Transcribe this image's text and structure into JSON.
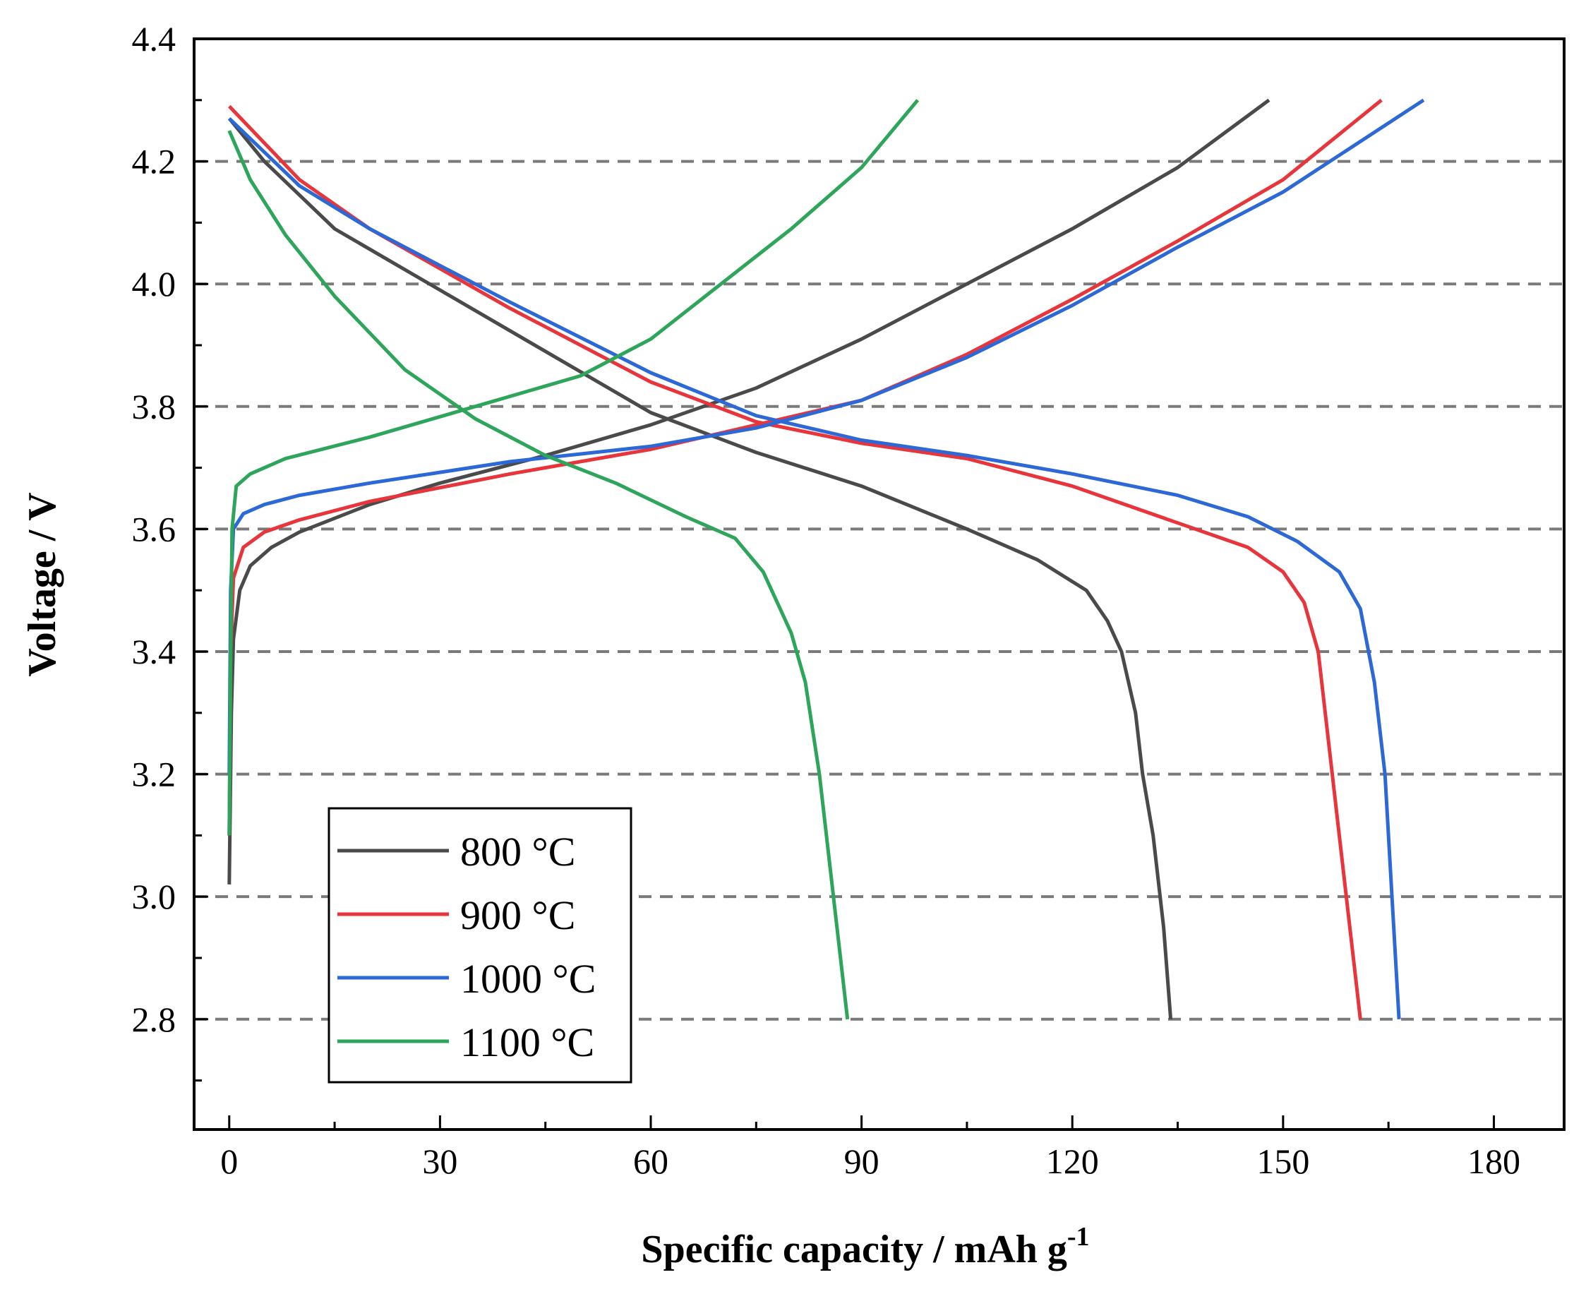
{
  "chart_data": {
    "type": "line",
    "title": "",
    "xlabel": "Specific capacity / mAh g",
    "xlabel_superscript": "-1",
    "ylabel": "Voltage / V",
    "xlim": [
      -5,
      190
    ],
    "ylim": [
      2.62,
      4.4
    ],
    "x_ticks": [
      0,
      30,
      60,
      90,
      120,
      150,
      180
    ],
    "x_tick_labels": [
      "0",
      "30",
      "60",
      "90",
      "120",
      "150",
      "180"
    ],
    "y_ticks": [
      2.8,
      3.0,
      3.2,
      3.4,
      3.6,
      3.8,
      4.0,
      4.2,
      4.4
    ],
    "y_tick_labels": [
      "2.8",
      "3.0",
      "3.2",
      "3.4",
      "3.6",
      "3.8",
      "4.0",
      "4.2",
      "4.4"
    ],
    "gridlines_y": [
      2.8,
      3.0,
      3.2,
      3.4,
      3.6,
      3.8,
      4.0,
      4.2
    ],
    "grid": "horizontal dashed",
    "legend_position": "bottom-left",
    "series": [
      {
        "name": "800 °C",
        "color": "#4a4a4a",
        "charge": [
          [
            0,
            3.02
          ],
          [
            0.3,
            3.3
          ],
          [
            0.6,
            3.42
          ],
          [
            1.5,
            3.5
          ],
          [
            3,
            3.54
          ],
          [
            6,
            3.57
          ],
          [
            10,
            3.595
          ],
          [
            20,
            3.64
          ],
          [
            30,
            3.675
          ],
          [
            45,
            3.72
          ],
          [
            60,
            3.77
          ],
          [
            75,
            3.83
          ],
          [
            90,
            3.91
          ],
          [
            105,
            4.0
          ],
          [
            120,
            4.09
          ],
          [
            135,
            4.19
          ],
          [
            148,
            4.3
          ]
        ],
        "discharge": [
          [
            0,
            4.27
          ],
          [
            5,
            4.2
          ],
          [
            15,
            4.09
          ],
          [
            30,
            3.99
          ],
          [
            45,
            3.89
          ],
          [
            60,
            3.79
          ],
          [
            75,
            3.725
          ],
          [
            90,
            3.67
          ],
          [
            105,
            3.6
          ],
          [
            115,
            3.55
          ],
          [
            122,
            3.5
          ],
          [
            125,
            3.45
          ],
          [
            127,
            3.4
          ],
          [
            129,
            3.3
          ],
          [
            130,
            3.2
          ],
          [
            131.5,
            3.1
          ],
          [
            133,
            2.95
          ],
          [
            134,
            2.8
          ]
        ]
      },
      {
        "name": "900 °C",
        "color": "#e8353c",
        "charge": [
          [
            0,
            3.1
          ],
          [
            0.2,
            3.4
          ],
          [
            0.6,
            3.52
          ],
          [
            2,
            3.57
          ],
          [
            5,
            3.595
          ],
          [
            10,
            3.615
          ],
          [
            20,
            3.645
          ],
          [
            40,
            3.69
          ],
          [
            60,
            3.73
          ],
          [
            75,
            3.77
          ],
          [
            90,
            3.81
          ],
          [
            105,
            3.885
          ],
          [
            120,
            3.975
          ],
          [
            135,
            4.07
          ],
          [
            150,
            4.17
          ],
          [
            164,
            4.3
          ]
        ],
        "discharge": [
          [
            0,
            4.29
          ],
          [
            10,
            4.17
          ],
          [
            20,
            4.09
          ],
          [
            40,
            3.96
          ],
          [
            60,
            3.84
          ],
          [
            75,
            3.775
          ],
          [
            90,
            3.74
          ],
          [
            105,
            3.715
          ],
          [
            120,
            3.67
          ],
          [
            135,
            3.61
          ],
          [
            145,
            3.57
          ],
          [
            150,
            3.53
          ],
          [
            153,
            3.48
          ],
          [
            155,
            3.4
          ],
          [
            157,
            3.2
          ],
          [
            159,
            3.0
          ],
          [
            160,
            2.9
          ],
          [
            161,
            2.8
          ]
        ]
      },
      {
        "name": "1000 °C",
        "color": "#2c68d6",
        "charge": [
          [
            0,
            3.2
          ],
          [
            0.2,
            3.5
          ],
          [
            0.6,
            3.6
          ],
          [
            2,
            3.625
          ],
          [
            5,
            3.64
          ],
          [
            10,
            3.655
          ],
          [
            20,
            3.675
          ],
          [
            40,
            3.71
          ],
          [
            60,
            3.735
          ],
          [
            75,
            3.765
          ],
          [
            90,
            3.81
          ],
          [
            105,
            3.88
          ],
          [
            120,
            3.965
          ],
          [
            135,
            4.06
          ],
          [
            150,
            4.15
          ],
          [
            170,
            4.3
          ]
        ],
        "discharge": [
          [
            0,
            4.27
          ],
          [
            10,
            4.16
          ],
          [
            20,
            4.09
          ],
          [
            40,
            3.97
          ],
          [
            60,
            3.855
          ],
          [
            75,
            3.785
          ],
          [
            90,
            3.745
          ],
          [
            105,
            3.72
          ],
          [
            120,
            3.69
          ],
          [
            135,
            3.655
          ],
          [
            145,
            3.62
          ],
          [
            152,
            3.58
          ],
          [
            158,
            3.53
          ],
          [
            161,
            3.47
          ],
          [
            163,
            3.35
          ],
          [
            164.5,
            3.2
          ],
          [
            165.5,
            3.0
          ],
          [
            166.5,
            2.8
          ]
        ]
      },
      {
        "name": "1100 °C",
        "color": "#2da55a",
        "charge": [
          [
            0,
            3.1
          ],
          [
            0.2,
            3.4
          ],
          [
            0.4,
            3.6
          ],
          [
            1,
            3.67
          ],
          [
            3,
            3.69
          ],
          [
            8,
            3.715
          ],
          [
            20,
            3.75
          ],
          [
            35,
            3.8
          ],
          [
            50,
            3.85
          ],
          [
            60,
            3.91
          ],
          [
            70,
            4.0
          ],
          [
            80,
            4.09
          ],
          [
            90,
            4.19
          ],
          [
            98,
            4.3
          ]
        ],
        "discharge": [
          [
            0,
            4.25
          ],
          [
            3,
            4.17
          ],
          [
            8,
            4.08
          ],
          [
            15,
            3.98
          ],
          [
            25,
            3.86
          ],
          [
            35,
            3.78
          ],
          [
            45,
            3.72
          ],
          [
            55,
            3.675
          ],
          [
            65,
            3.62
          ],
          [
            72,
            3.585
          ],
          [
            76,
            3.53
          ],
          [
            80,
            3.43
          ],
          [
            82,
            3.35
          ],
          [
            84,
            3.2
          ],
          [
            86,
            3.0
          ],
          [
            87,
            2.9
          ],
          [
            88,
            2.8
          ]
        ]
      }
    ]
  }
}
